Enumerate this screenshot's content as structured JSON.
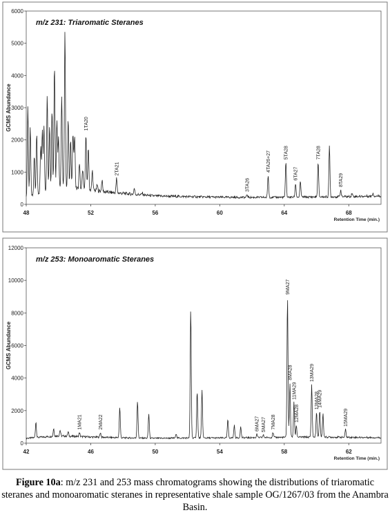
{
  "chart_data": [
    {
      "type": "line",
      "title": "m/z 231: Triaromatic Steranes",
      "ylabel": "GCMS Abundance",
      "xlabel": "Retention Time (min.)",
      "ylim": [
        0,
        6000
      ],
      "xlim": [
        48,
        70
      ],
      "yticks": [
        0,
        1000,
        2000,
        3000,
        4000,
        5000,
        6000
      ],
      "xticks": [
        48,
        52,
        56,
        60,
        64,
        68
      ],
      "grid": false,
      "baseline": [
        [
          48,
          200
        ],
        [
          50,
          550
        ],
        [
          51,
          500
        ],
        [
          52,
          450
        ],
        [
          53,
          380
        ],
        [
          54,
          340
        ],
        [
          55,
          300
        ],
        [
          56,
          260
        ],
        [
          58,
          240
        ],
        [
          60,
          220
        ],
        [
          62,
          215
        ],
        [
          64,
          220
        ],
        [
          66,
          230
        ],
        [
          68,
          240
        ],
        [
          70,
          260
        ]
      ],
      "peaks": [
        {
          "x": 48.1,
          "y": 3050
        },
        {
          "x": 48.25,
          "y": 2400
        },
        {
          "x": 48.5,
          "y": 1500
        },
        {
          "x": 48.65,
          "y": 2250
        },
        {
          "x": 48.9,
          "y": 1800
        },
        {
          "x": 49.0,
          "y": 2300
        },
        {
          "x": 49.1,
          "y": 2450
        },
        {
          "x": 49.3,
          "y": 3400
        },
        {
          "x": 49.45,
          "y": 2500
        },
        {
          "x": 49.6,
          "y": 2950
        },
        {
          "x": 49.75,
          "y": 4400
        },
        {
          "x": 49.9,
          "y": 2700
        },
        {
          "x": 50.0,
          "y": 2150
        },
        {
          "x": 50.2,
          "y": 3400
        },
        {
          "x": 50.4,
          "y": 5400
        },
        {
          "x": 50.6,
          "y": 2650
        },
        {
          "x": 50.75,
          "y": 2050
        },
        {
          "x": 50.9,
          "y": 2200
        },
        {
          "x": 51.0,
          "y": 2200
        },
        {
          "x": 51.3,
          "y": 1300
        },
        {
          "x": 51.5,
          "y": 1100
        },
        {
          "x": 51.7,
          "y": 2200
        },
        {
          "x": 51.85,
          "y": 1800
        },
        {
          "x": 52.1,
          "y": 1050
        },
        {
          "x": 52.4,
          "y": 600
        },
        {
          "x": 52.7,
          "y": 750
        },
        {
          "x": 53.6,
          "y": 800
        },
        {
          "x": 54.7,
          "y": 500
        },
        {
          "x": 55.2,
          "y": 350
        },
        {
          "x": 61.7,
          "y": 300
        },
        {
          "x": 63.0,
          "y": 900
        },
        {
          "x": 64.1,
          "y": 1300
        },
        {
          "x": 64.7,
          "y": 650
        },
        {
          "x": 65.0,
          "y": 700
        },
        {
          "x": 66.1,
          "y": 1300
        },
        {
          "x": 66.8,
          "y": 1800
        },
        {
          "x": 67.5,
          "y": 450
        },
        {
          "x": 68.2,
          "y": 350
        },
        {
          "x": 69.5,
          "y": 350
        }
      ],
      "peak_labels": [
        {
          "text": "1TA20",
          "x": 51.7,
          "y": 2200
        },
        {
          "text": "2TA21",
          "x": 53.6,
          "y": 800
        },
        {
          "text": "3TA26",
          "x": 61.7,
          "y": 300
        },
        {
          "text": "4TA26+27",
          "x": 63.0,
          "y": 900
        },
        {
          "text": "5TA28",
          "x": 64.1,
          "y": 1300
        },
        {
          "text": "6TA27",
          "x": 64.7,
          "y": 650
        },
        {
          "text": "7TA28",
          "x": 66.1,
          "y": 1300
        },
        {
          "text": "8TA29",
          "x": 67.5,
          "y": 450
        }
      ]
    },
    {
      "type": "line",
      "title": "m/z 253: Monoaromatic Steranes",
      "ylabel": "GCMS Abundance",
      "xlabel": "Retention Time (min.)",
      "ylim": [
        0,
        12000
      ],
      "xlim": [
        42,
        64
      ],
      "yticks": [
        0,
        2000,
        4000,
        6000,
        8000,
        10000,
        12000
      ],
      "xticks": [
        42,
        46,
        50,
        54,
        58,
        62
      ],
      "grid": false,
      "baseline": [
        [
          42,
          300
        ],
        [
          44,
          450
        ],
        [
          46,
          380
        ],
        [
          48,
          330
        ],
        [
          50,
          300
        ],
        [
          52,
          320
        ],
        [
          54,
          320
        ],
        [
          56,
          340
        ],
        [
          58,
          360
        ],
        [
          60,
          380
        ],
        [
          62,
          360
        ],
        [
          64,
          340
        ]
      ],
      "peaks": [
        {
          "x": 42.6,
          "y": 1300
        },
        {
          "x": 43.7,
          "y": 900
        },
        {
          "x": 44.1,
          "y": 800
        },
        {
          "x": 44.6,
          "y": 700
        },
        {
          "x": 45.3,
          "y": 650
        },
        {
          "x": 46.6,
          "y": 650
        },
        {
          "x": 47.8,
          "y": 2200
        },
        {
          "x": 48.9,
          "y": 2600
        },
        {
          "x": 49.6,
          "y": 1800
        },
        {
          "x": 51.3,
          "y": 600
        },
        {
          "x": 52.2,
          "y": 8250
        },
        {
          "x": 52.6,
          "y": 3200
        },
        {
          "x": 52.9,
          "y": 3250
        },
        {
          "x": 54.5,
          "y": 1450
        },
        {
          "x": 54.9,
          "y": 1100
        },
        {
          "x": 55.3,
          "y": 1000
        },
        {
          "x": 56.3,
          "y": 550
        },
        {
          "x": 56.7,
          "y": 500
        },
        {
          "x": 57.3,
          "y": 650
        },
        {
          "x": 58.2,
          "y": 8950
        },
        {
          "x": 58.35,
          "y": 3700
        },
        {
          "x": 58.6,
          "y": 2500
        },
        {
          "x": 58.75,
          "y": 1100
        },
        {
          "x": 59.7,
          "y": 3600
        },
        {
          "x": 60.0,
          "y": 1900
        },
        {
          "x": 60.2,
          "y": 2000
        },
        {
          "x": 60.4,
          "y": 1800
        },
        {
          "x": 61.8,
          "y": 850
        },
        {
          "x": 63.3,
          "y": 350
        }
      ],
      "peak_labels": [
        {
          "text": "1MA21",
          "x": 45.3,
          "y": 650
        },
        {
          "text": "2MA22",
          "x": 46.6,
          "y": 650
        },
        {
          "text": "6MA27",
          "x": 56.3,
          "y": 550
        },
        {
          "text": "5MA27",
          "x": 56.7,
          "y": 500
        },
        {
          "text": "7MA28",
          "x": 57.3,
          "y": 650
        },
        {
          "text": "9MA27",
          "x": 58.2,
          "y": 8950
        },
        {
          "text": "8MA28",
          "x": 58.35,
          "y": 3700
        },
        {
          "text": "11MA29",
          "x": 58.6,
          "y": 2500
        },
        {
          "text": "12MA28",
          "x": 58.75,
          "y": 1100
        },
        {
          "text": "13MA29",
          "x": 59.7,
          "y": 3600
        },
        {
          "text": "13MA28",
          "x": 60.0,
          "y": 1900
        },
        {
          "text": "14MA29",
          "x": 60.2,
          "y": 2000
        },
        {
          "text": "15MA29",
          "x": 61.8,
          "y": 850
        }
      ]
    }
  ],
  "caption": {
    "label": "Figure 10a",
    "text": ": m/z 231 and 253 mass chromatograms showing the distributions of triaromatic steranes and monoaromatic steranes in representative shale sample OG/1267/03 from the Anambra Basin."
  }
}
